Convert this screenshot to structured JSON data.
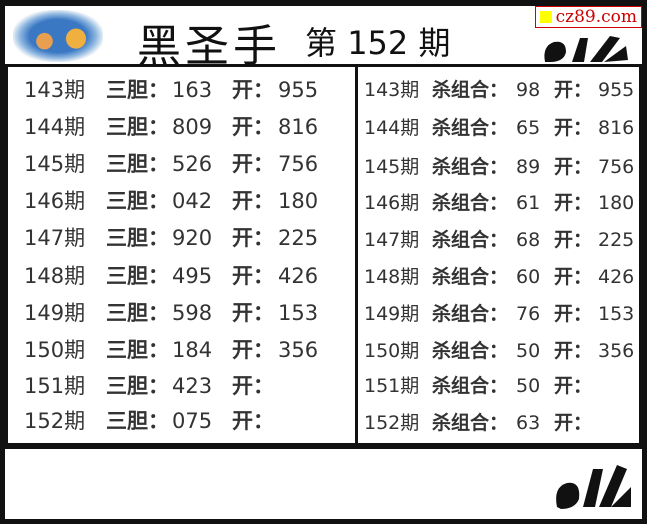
{
  "header": {
    "title": "黑圣手",
    "issue_prefix": "第",
    "issue_number": "152",
    "issue_suffix": "期",
    "watermark": "cz89.com"
  },
  "left_panel": {
    "label_a": "三胆：",
    "label_b": "开：",
    "rows": [
      {
        "period": "143期",
        "value": "163",
        "result": "955"
      },
      {
        "period": "144期",
        "value": "809",
        "result": "816"
      },
      {
        "period": "145期",
        "value": "526",
        "result": "756"
      },
      {
        "period": "146期",
        "value": "042",
        "result": "180"
      },
      {
        "period": "147期",
        "value": "920",
        "result": "225"
      },
      {
        "period": "148期",
        "value": "495",
        "result": "426"
      },
      {
        "period": "149期",
        "value": "598",
        "result": "153"
      },
      {
        "period": "150期",
        "value": "184",
        "result": "356"
      },
      {
        "period": "151期",
        "value": "423",
        "result": ""
      },
      {
        "period": "152期",
        "value": "075",
        "result": ""
      }
    ]
  },
  "right_panel": {
    "label_a": "杀组合：",
    "label_b": "开：",
    "rows": [
      {
        "period": "143期",
        "value": "98",
        "result": "955"
      },
      {
        "period": "144期",
        "value": "65",
        "result": "816"
      },
      {
        "period": "145期",
        "value": "89",
        "result": "756"
      },
      {
        "period": "146期",
        "value": "61",
        "result": "180"
      },
      {
        "period": "147期",
        "value": "68",
        "result": "225"
      },
      {
        "period": "148期",
        "value": "60",
        "result": "426"
      },
      {
        "period": "149期",
        "value": "76",
        "result": "153"
      },
      {
        "period": "150期",
        "value": "50",
        "result": "356"
      },
      {
        "period": "151期",
        "value": "50",
        "result": ""
      },
      {
        "period": "152期",
        "value": "63",
        "result": ""
      }
    ]
  },
  "icons": {
    "logo": "decorative-illustration",
    "hand": "ok-hand-icon"
  }
}
